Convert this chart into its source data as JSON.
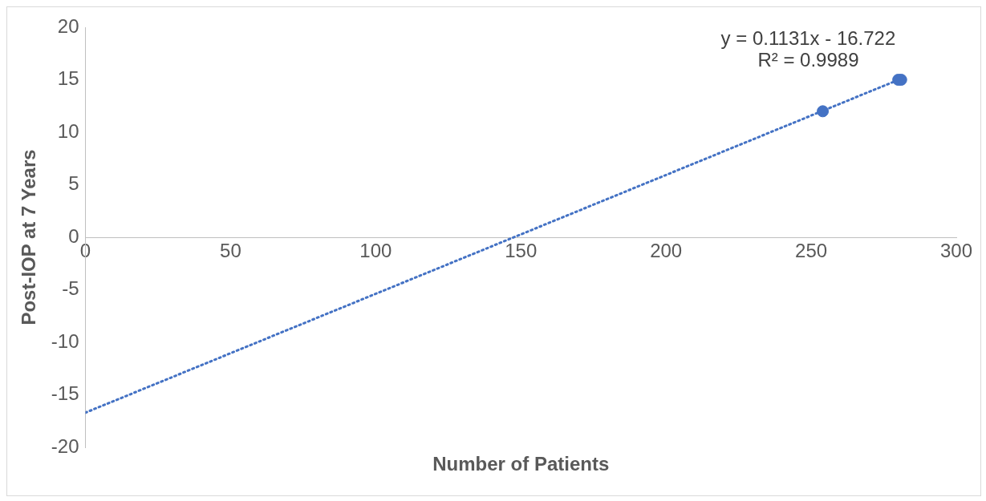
{
  "chart_data": {
    "type": "scatter",
    "xlabel": "Number of Patients",
    "ylabel": "Post-IOP at 7 Years",
    "xlim": [
      0,
      300
    ],
    "xticks": [
      0,
      50,
      100,
      150,
      200,
      250,
      300
    ],
    "ylim": [
      -20,
      20
    ],
    "yticks": [
      -20,
      -15,
      -10,
      -5,
      0,
      5,
      10,
      15,
      20
    ],
    "grid": false,
    "legend": false,
    "marker": "circle",
    "series": [
      {
        "color": "#4472c4",
        "x": [
          254,
          280,
          281
        ],
        "values": [
          12,
          15,
          15
        ]
      },
      {
        "type": "line",
        "color": "#4472c4",
        "line_style": "dotted",
        "marker": "none",
        "x": [
          0,
          281
        ],
        "values": [
          -16.7,
          15.1
        ]
      }
    ],
    "annotations": [
      "y = 0.1131x - 16.722",
      "R² = 0.9989"
    ]
  }
}
